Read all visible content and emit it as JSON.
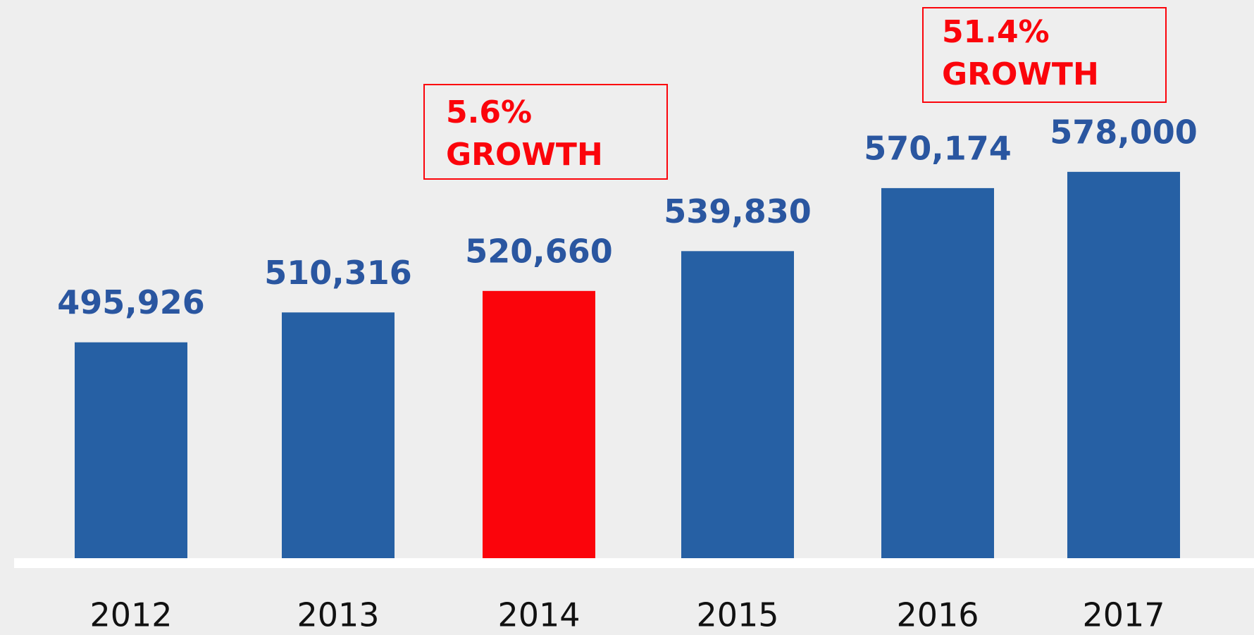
{
  "chart_data": {
    "type": "bar",
    "categories": [
      "2012",
      "2013",
      "2014",
      "2015",
      "2016",
      "2017"
    ],
    "values": [
      495926,
      510316,
      520660,
      539830,
      570174,
      578000
    ],
    "value_labels": [
      "495,926",
      "510,316",
      "520,660",
      "539,830",
      "570,174",
      "578,000"
    ],
    "colors": [
      "#2660a4",
      "#2660a4",
      "#fb040b",
      "#2660a4",
      "#2660a4",
      "#2660a4"
    ],
    "ylim": [
      392000,
      600000
    ],
    "annotations": [
      {
        "lines": [
          "5.6%",
          "GROWTH"
        ]
      },
      {
        "lines": [
          "51.4%",
          "GROWTH"
        ]
      }
    ]
  }
}
